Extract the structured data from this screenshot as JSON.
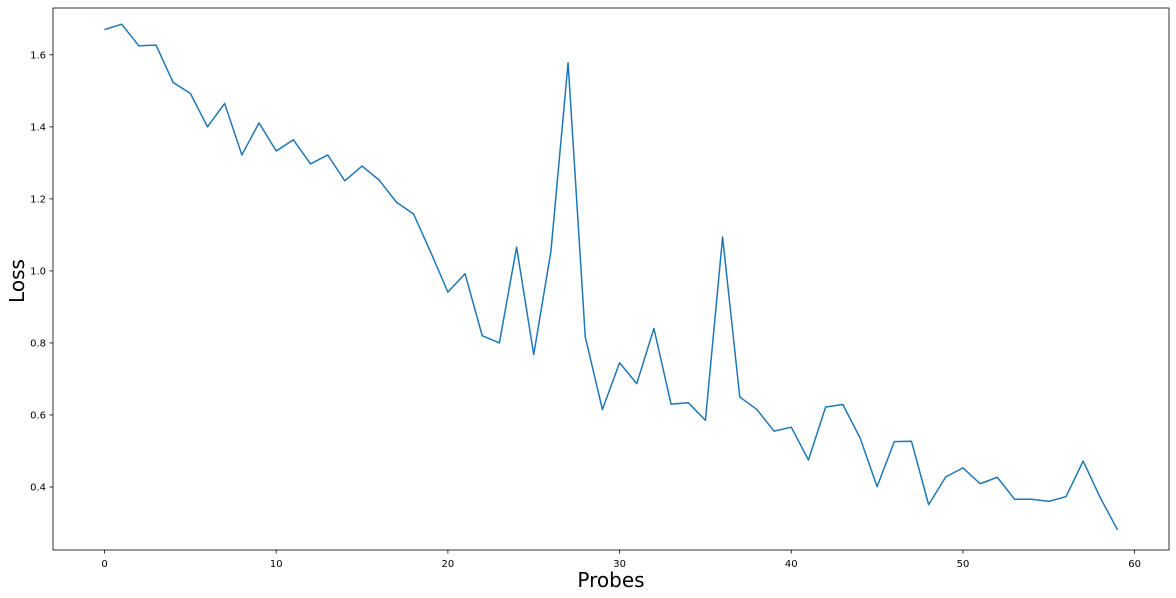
{
  "chart_data": {
    "type": "line",
    "xlabel": "Probes",
    "ylabel": "Loss",
    "xlim": [
      -3.0,
      62.0
    ],
    "ylim": [
      0.225,
      1.73
    ],
    "xticks": [
      0,
      10,
      20,
      30,
      40,
      50,
      60
    ],
    "yticks": [
      0.4,
      0.6,
      0.8,
      1.0,
      1.2,
      1.4,
      1.6
    ],
    "xtick_labels": [
      "0",
      "10",
      "20",
      "30",
      "40",
      "50",
      "60"
    ],
    "ytick_labels": [
      "0.4",
      "0.6",
      "0.8",
      "1.0",
      "1.2",
      "1.4",
      "1.6"
    ],
    "grid": false,
    "color": "#1f77b4",
    "series": [
      {
        "x": [
          0,
          1,
          2,
          3,
          4,
          5,
          6,
          7,
          8,
          9,
          10,
          11,
          12,
          13,
          14,
          15,
          16,
          17,
          18,
          19,
          20,
          21,
          22,
          23,
          24,
          25,
          26,
          27,
          28,
          29,
          30,
          31,
          32,
          33,
          34,
          35,
          36,
          37,
          38,
          39,
          40,
          41,
          42,
          43,
          44,
          45,
          46,
          47,
          48,
          49,
          50,
          51,
          52,
          53,
          54,
          55,
          56,
          57,
          58,
          59
        ],
        "values": [
          1.67,
          1.685,
          1.625,
          1.627,
          1.523,
          1.493,
          1.4,
          1.465,
          1.322,
          1.411,
          1.333,
          1.364,
          1.297,
          1.322,
          1.25,
          1.291,
          1.252,
          1.191,
          1.158,
          1.052,
          0.941,
          0.992,
          0.82,
          0.8,
          1.066,
          0.768,
          1.054,
          1.578,
          0.817,
          0.615,
          0.745,
          0.687,
          0.84,
          0.63,
          0.634,
          0.585,
          1.094,
          0.65,
          0.615,
          0.555,
          0.566,
          0.475,
          0.622,
          0.629,
          0.537,
          0.401,
          0.526,
          0.527,
          0.351,
          0.428,
          0.453,
          0.409,
          0.427,
          0.366,
          0.366,
          0.36,
          0.373,
          0.472,
          0.37,
          0.281
        ]
      }
    ]
  }
}
